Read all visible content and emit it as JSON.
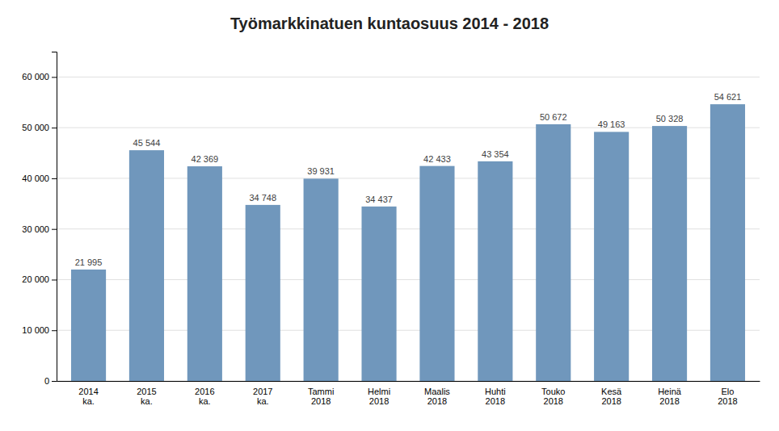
{
  "chart_data": {
    "type": "bar",
    "title": "Työmarkkinatuen kuntaosuus 2014 - 2018",
    "categories": [
      "2014\nka.",
      "2015\nka.",
      "2016\nka.",
      "2017\nka.",
      "Tammi\n2018",
      "Helmi\n2018",
      "Maalis\n2018",
      "Huhti\n2018",
      "Touko\n2018",
      "Kesä\n2018",
      "Heinä\n2018",
      "Elo\n2018"
    ],
    "values": [
      21995,
      45544,
      42369,
      34748,
      39931,
      34437,
      42433,
      43354,
      50672,
      49163,
      50328,
      54621
    ],
    "value_labels": [
      "21 995",
      "45 544",
      "42 369",
      "34 748",
      "39 931",
      "34 437",
      "42 433",
      "43 354",
      "50 672",
      "49 163",
      "50 328",
      "54 621"
    ],
    "color": "#7097bc",
    "ylim": [
      0,
      65000
    ],
    "yticks": [
      0,
      {
        "value": 10000,
        "label": "10 000"
      },
      {
        "value": 20000,
        "label": "20 000"
      },
      {
        "value": 30000,
        "label": "30 000"
      },
      {
        "value": 40000,
        "label": "40 000"
      },
      {
        "value": 50000,
        "label": "50 000"
      },
      {
        "value": 60000,
        "label": "60 000"
      }
    ],
    "grid": true,
    "data_labels": true
  }
}
